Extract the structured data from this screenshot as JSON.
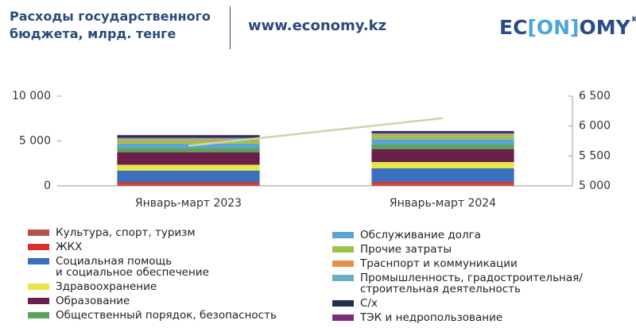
{
  "header": {
    "title": "Расходы государственного бюджета, млрд. тенге",
    "site": "www.economy.kz",
    "logo": [
      "EC",
      "[ON]",
      "OMY",
      "KZ"
    ]
  },
  "chart_data": {
    "type": "bar",
    "stacked": true,
    "categories": [
      "Январь-март 2023",
      "Январь-март 2024"
    ],
    "ylim": [
      0,
      10000
    ],
    "yticks": [
      0,
      {
        "value": 5000,
        "label": "5 000"
      },
      {
        "value": 10000,
        "label": "10 000"
      }
    ],
    "y2lim": [
      5000,
      6500
    ],
    "y2ticks": [
      {
        "value": 5000,
        "label": "5 000"
      },
      {
        "value": 5500,
        "label": "5 500"
      },
      {
        "value": 6000,
        "label": "6 000"
      },
      {
        "value": 6500,
        "label": "6 500"
      }
    ],
    "series": [
      {
        "name": "Культура, спорт, туризм",
        "color": "#b5534a",
        "values": [
          180,
          200
        ]
      },
      {
        "name": "ЖКХ",
        "color": "#d9302a",
        "values": [
          220,
          250
        ]
      },
      {
        "name": "Социальная помощь\nи социальное обеспечение",
        "color": "#3a6fbf",
        "values": [
          1300,
          1500
        ]
      },
      {
        "name": "Здравоохранение",
        "color": "#e6e64a",
        "values": [
          650,
          700
        ]
      },
      {
        "name": "Образование",
        "color": "#6a1f4a",
        "values": [
          1400,
          1450
        ]
      },
      {
        "name": "Общественный порядок, безопасность",
        "color": "#5aa55a",
        "values": [
          450,
          500
        ]
      },
      {
        "name": "Обслуживание долга",
        "color": "#5ea3d6",
        "values": [
          500,
          600
        ]
      },
      {
        "name": "Прочие затраты",
        "color": "#9bc24a",
        "values": [
          300,
          350
        ]
      },
      {
        "name": "Траснпорт и коммуникации",
        "color": "#e8904a",
        "values": [
          200,
          180
        ]
      },
      {
        "name": "Промышленность, градостроительная/\nстроительная деятельность",
        "color": "#6ab0c0",
        "values": [
          150,
          130
        ]
      },
      {
        "name": "С/х",
        "color": "#1f2f4f",
        "values": [
          220,
          200
        ]
      },
      {
        "name": "ТЭК и недропользование",
        "color": "#7a2f7a",
        "values": [
          100,
          50
        ]
      }
    ],
    "line": {
      "axis": "y2",
      "color": "#c8d8a8",
      "values": [
        5670,
        6130
      ]
    }
  }
}
